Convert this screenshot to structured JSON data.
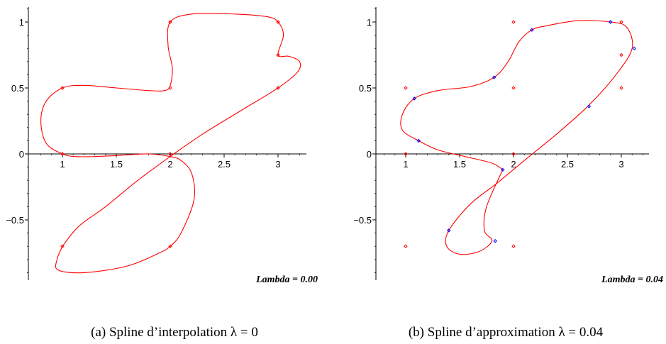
{
  "colors": {
    "curve": "#ff0000",
    "control": "#ff0000",
    "fitted": "#0000ff",
    "axis": "#000000"
  },
  "chart_data": [
    {
      "type": "line",
      "xlim": [
        0.7,
        3.3
      ],
      "ylim": [
        -0.92,
        1.12
      ],
      "xticks": [
        "1",
        "1.5",
        "2",
        "2.5",
        "3"
      ],
      "yticks": [
        "−0.5",
        "0",
        "0.5",
        "1"
      ],
      "series": [
        {
          "role": "spline",
          "points": [
            [
              1,
              -0.7
            ],
            [
              0.95,
              -0.8
            ],
            [
              0.96,
              -0.88
            ],
            [
              1.2,
              -0.9
            ],
            [
              1.6,
              -0.85
            ],
            [
              1.9,
              -0.75
            ],
            [
              2,
              -0.7
            ],
            [
              2.1,
              -0.6
            ],
            [
              2.22,
              -0.35
            ],
            [
              2.2,
              -0.15
            ],
            [
              2.1,
              -0.05
            ],
            [
              2,
              -0.02
            ],
            [
              1.8,
              0
            ],
            [
              1.55,
              -0.01
            ],
            [
              1.3,
              -0.02
            ],
            [
              1.12,
              -0.02
            ],
            [
              1,
              0
            ],
            [
              0.85,
              0.08
            ],
            [
              0.8,
              0.25
            ],
            [
              0.85,
              0.4
            ],
            [
              1,
              0.5
            ],
            [
              1.2,
              0.52
            ],
            [
              1.5,
              0.5
            ],
            [
              1.8,
              0.48
            ],
            [
              1.95,
              0.48
            ],
            [
              2,
              0.52
            ],
            [
              2.02,
              0.65
            ],
            [
              1.98,
              0.82
            ],
            [
              2,
              1
            ],
            [
              2.2,
              1.06
            ],
            [
              2.6,
              1.06
            ],
            [
              2.9,
              1.04
            ],
            [
              3,
              1
            ],
            [
              3.05,
              0.9
            ],
            [
              3,
              0.75
            ],
            [
              3.1,
              0.74
            ],
            [
              3.2,
              0.7
            ],
            [
              3.18,
              0.62
            ],
            [
              3,
              0.5
            ],
            [
              2.7,
              0.35
            ],
            [
              2.3,
              0.15
            ],
            [
              2,
              -0.02
            ],
            [
              1.7,
              -0.2
            ],
            [
              1.4,
              -0.4
            ],
            [
              1.15,
              -0.55
            ],
            [
              1,
              -0.7
            ]
          ]
        },
        {
          "role": "control-points",
          "points": [
            [
              1,
              0.5
            ],
            [
              2,
              1
            ],
            [
              3,
              1
            ],
            [
              3,
              0.75
            ],
            [
              3,
              0.5
            ],
            [
              2,
              0.5
            ],
            [
              1,
              0
            ],
            [
              2,
              0
            ],
            [
              1,
              -0.7
            ],
            [
              2,
              -0.7
            ]
          ]
        }
      ],
      "annotation": "Lambda = 0.00",
      "caption": "(a)  Spline d’interpolation λ = 0"
    },
    {
      "type": "line",
      "xlim": [
        0.7,
        3.3
      ],
      "ylim": [
        -0.92,
        1.12
      ],
      "xticks": [
        "1",
        "1.5",
        "2",
        "2.5",
        "3"
      ],
      "yticks": [
        "−0.5",
        "0",
        "0.5",
        "1"
      ],
      "series": [
        {
          "role": "spline",
          "points": [
            [
              1.9,
              -0.12
            ],
            [
              1.75,
              -0.4
            ],
            [
              1.73,
              -0.58
            ],
            [
              1.8,
              -0.66
            ],
            [
              1.68,
              -0.74
            ],
            [
              1.5,
              -0.76
            ],
            [
              1.38,
              -0.7
            ],
            [
              1.4,
              -0.58
            ],
            [
              1.6,
              -0.38
            ],
            [
              1.85,
              -0.22
            ],
            [
              2.1,
              -0.05
            ],
            [
              2.4,
              0.15
            ],
            [
              2.7,
              0.37
            ],
            [
              2.95,
              0.6
            ],
            [
              3.1,
              0.8
            ],
            [
              3.05,
              0.96
            ],
            [
              2.9,
              1
            ],
            [
              2.6,
              1.01
            ],
            [
              2.3,
              0.97
            ],
            [
              2.17,
              0.94
            ],
            [
              2.05,
              0.85
            ],
            [
              1.95,
              0.7
            ],
            [
              1.82,
              0.58
            ],
            [
              1.6,
              0.51
            ],
            [
              1.3,
              0.48
            ],
            [
              1.08,
              0.42
            ],
            [
              0.97,
              0.3
            ],
            [
              0.97,
              0.18
            ],
            [
              1.12,
              0.1
            ],
            [
              1.3,
              0.03
            ],
            [
              1.55,
              -0.02
            ],
            [
              1.8,
              -0.07
            ],
            [
              1.9,
              -0.12
            ]
          ]
        },
        {
          "role": "control-points",
          "points": [
            [
              1,
              0.5
            ],
            [
              2,
              1
            ],
            [
              3,
              1
            ],
            [
              3,
              0.75
            ],
            [
              3,
              0.5
            ],
            [
              2,
              0.5
            ],
            [
              1,
              0
            ],
            [
              2,
              0
            ],
            [
              1,
              -0.7
            ],
            [
              2,
              -0.7
            ]
          ]
        },
        {
          "role": "fitted-points",
          "points": [
            [
              1.08,
              0.42
            ],
            [
              1.12,
              0.1
            ],
            [
              1.82,
              0.58
            ],
            [
              2.17,
              0.94
            ],
            [
              2.9,
              1
            ],
            [
              3.12,
              0.8
            ],
            [
              2.7,
              0.36
            ],
            [
              1.9,
              -0.12
            ],
            [
              1.4,
              -0.58
            ],
            [
              1.83,
              -0.66
            ]
          ]
        }
      ],
      "annotation": "Lambda = 0.04",
      "caption": "(b)  Spline d’approximation λ = 0.04"
    }
  ]
}
